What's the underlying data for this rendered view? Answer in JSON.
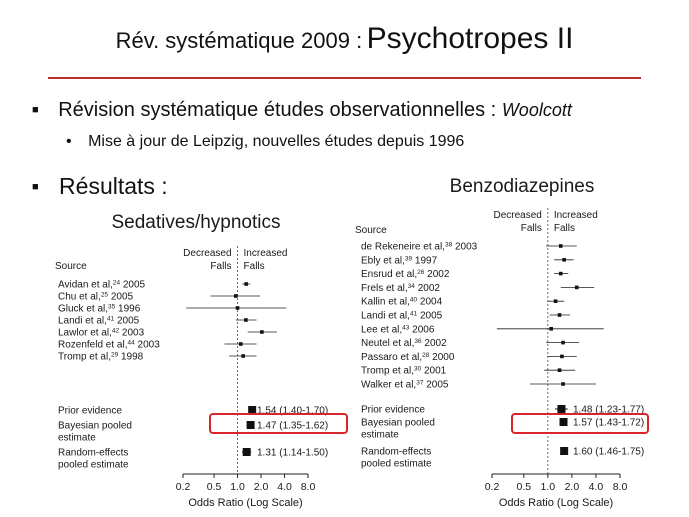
{
  "slide": {
    "title_prefix": "Rév. systématique 2009 :",
    "title_main": "Psychotropes II",
    "bullet1_text": "Révision systématique études observationnelles :",
    "bullet1_ref": "Woolcott",
    "bullet2_text": "Mise à jour de Leipzig, nouvelles études depuis 1996",
    "bullet3_text": "Résultats :",
    "bullet_marker": "■",
    "sub_marker": "•",
    "accent_color": "#b8312f",
    "highlight_color": "#d9242b"
  },
  "chart_data": [
    {
      "type": "forest",
      "title": "Sedatives/hypnotics",
      "xlabel": "Odds Ratio (Log Scale)",
      "x_scale": "log",
      "xlim": [
        0.2,
        8.0
      ],
      "xticks": [
        0.2,
        0.5,
        1.0,
        2.0,
        4.0,
        8.0
      ],
      "xtick_labels": [
        "0.2",
        "0.5",
        "1.0",
        "2.0",
        "4.0",
        "8.0"
      ],
      "reference_line": 1.0,
      "header_source": "Source",
      "header_left": [
        "Decreased",
        "Falls"
      ],
      "header_right": [
        "Increased",
        "Falls"
      ],
      "studies": [
        {
          "label": "Avidan et al,",
          "sup": "24",
          "year": "2005",
          "or": 1.29,
          "lo": 1.15,
          "hi": 1.45
        },
        {
          "label": "Chu et al,",
          "sup": "25",
          "year": "2005",
          "or": 0.95,
          "lo": 0.45,
          "hi": 1.95
        },
        {
          "label": "Gluck et al,",
          "sup": "35",
          "year": "1996",
          "or": 1.0,
          "lo": 0.22,
          "hi": 4.2
        },
        {
          "label": "Landi et al,",
          "sup": "41",
          "year": "2005",
          "or": 1.28,
          "lo": 0.95,
          "hi": 1.75
        },
        {
          "label": "Lawlor et al,",
          "sup": "42",
          "year": "2003",
          "or": 2.05,
          "lo": 1.35,
          "hi": 3.2
        },
        {
          "label": "Rozenfeld et al,",
          "sup": "44",
          "year": "2003",
          "or": 1.1,
          "lo": 0.68,
          "hi": 1.75
        },
        {
          "label": "Tromp et al,",
          "sup": "29",
          "year": "1998",
          "or": 1.18,
          "lo": 0.78,
          "hi": 1.75
        }
      ],
      "pooled": [
        {
          "label": [
            "Prior evidence"
          ],
          "or": 1.54,
          "lo": 1.4,
          "hi": 1.7,
          "text": "1.54 (1.40-1.70)",
          "highlight": false
        },
        {
          "label": [
            "Bayesian pooled",
            "estimate"
          ],
          "or": 1.47,
          "lo": 1.35,
          "hi": 1.62,
          "text": "1.47 (1.35-1.62)",
          "highlight": true
        },
        {
          "label": [
            "Random-effects",
            "pooled estimate"
          ],
          "or": 1.31,
          "lo": 1.14,
          "hi": 1.5,
          "text": "1.31 (1.14-1.50)",
          "highlight": false
        }
      ]
    },
    {
      "type": "forest",
      "title": "Benzodiazepines",
      "xlabel": "Odds Ratio (Log Scale)",
      "x_scale": "log",
      "xlim": [
        0.2,
        8.0
      ],
      "xticks": [
        0.2,
        0.5,
        1.0,
        2.0,
        4.0,
        8.0
      ],
      "xtick_labels": [
        "0.2",
        "0.5",
        "1.0",
        "2.0",
        "4.0",
        "8.0"
      ],
      "reference_line": 1.0,
      "header_source": "Source",
      "header_left": [
        "Decreased",
        "Falls"
      ],
      "header_right": [
        "Increased",
        "Falls"
      ],
      "studies": [
        {
          "label": "de Rekeneire et al,",
          "sup": "38",
          "year": "2003",
          "or": 1.45,
          "lo": 0.95,
          "hi": 2.3
        },
        {
          "label": "Ebly et al,",
          "sup": "39",
          "year": "1997",
          "or": 1.6,
          "lo": 1.2,
          "hi": 2.1
        },
        {
          "label": "Ensrud et al,",
          "sup": "26",
          "year": "2002",
          "or": 1.45,
          "lo": 1.2,
          "hi": 1.8
        },
        {
          "label": "Frels et al,",
          "sup": "34",
          "year": "2002",
          "or": 2.3,
          "lo": 1.45,
          "hi": 3.8
        },
        {
          "label": "Kallin et al,",
          "sup": "40",
          "year": "2004",
          "or": 1.25,
          "lo": 1.0,
          "hi": 1.6
        },
        {
          "label": "Landi et al,",
          "sup": "41",
          "year": "2005",
          "or": 1.4,
          "lo": 1.05,
          "hi": 1.9
        },
        {
          "label": "Lee et al,",
          "sup": "43",
          "year": "2006",
          "or": 1.1,
          "lo": 0.23,
          "hi": 5.0
        },
        {
          "label": "Neutel et al,",
          "sup": "36",
          "year": "2002",
          "or": 1.55,
          "lo": 0.95,
          "hi": 2.45
        },
        {
          "label": "Passaro et al,",
          "sup": "28",
          "year": "2000",
          "or": 1.5,
          "lo": 1.0,
          "hi": 2.3
        },
        {
          "label": "Tromp et al,",
          "sup": "30",
          "year": "2001",
          "or": 1.4,
          "lo": 0.9,
          "hi": 2.2
        },
        {
          "label": "Walker et al,",
          "sup": "37",
          "year": "2005",
          "or": 1.55,
          "lo": 0.6,
          "hi": 4.0
        }
      ],
      "pooled": [
        {
          "label": [
            "Prior evidence"
          ],
          "or": 1.48,
          "lo": 1.23,
          "hi": 1.77,
          "text": "1.48 (1.23-1.77)",
          "highlight": false
        },
        {
          "label": [
            "Bayesian pooled",
            "estimate"
          ],
          "or": 1.57,
          "lo": 1.43,
          "hi": 1.72,
          "text": "1.57 (1.43-1.72)",
          "highlight": true
        },
        {
          "label": [
            "Random-effects",
            "pooled estimate"
          ],
          "or": 1.6,
          "lo": 1.46,
          "hi": 1.75,
          "text": "1.60 (1.46-1.75)",
          "highlight": false
        }
      ]
    }
  ]
}
